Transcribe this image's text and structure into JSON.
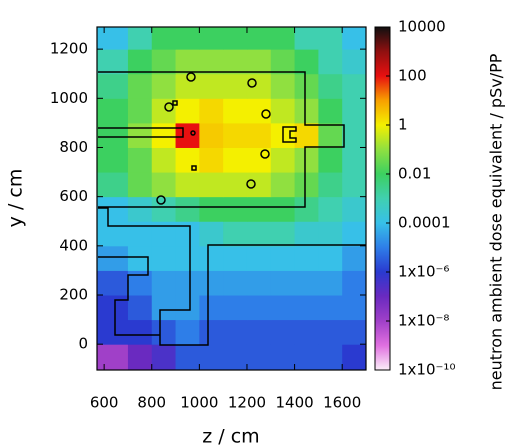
{
  "chart_data": {
    "type": "heatmap",
    "xlabel": "z / cm",
    "ylabel": "y / cm",
    "colorbar_label": "neutron ambient dose equivalent / pSv/PP",
    "xlim": [
      570,
      1700
    ],
    "ylim": [
      -105,
      1290
    ],
    "xticks": [
      600,
      800,
      1000,
      1200,
      1400,
      1600
    ],
    "yticks": [
      0,
      200,
      400,
      600,
      800,
      1000,
      1200
    ],
    "x_bins": [
      570,
      700,
      800,
      900,
      1000,
      1100,
      1200,
      1300,
      1400,
      1500,
      1600,
      1700
    ],
    "y_bins": [
      -105,
      0,
      100,
      200,
      300,
      400,
      500,
      600,
      700,
      800,
      900,
      1000,
      1100,
      1200,
      1290
    ],
    "log_color": true,
    "clim": [
      1e-10,
      10000
    ],
    "cticks": [
      10000,
      100,
      1,
      0.01,
      0.0001,
      {
        "value": 1e-06,
        "label": "1x10⁻⁶"
      },
      {
        "value": 1e-08,
        "label": "1x10⁻⁸"
      },
      {
        "value": 1e-10,
        "label": "1x10⁻¹⁰"
      }
    ],
    "colormap": [
      "#fbeef8",
      "#e070e0",
      "#a040c8",
      "#6a2ac0",
      "#2a3ad0",
      "#2e7ee8",
      "#37c0e8",
      "#40d0b0",
      "#3cd060",
      "#90e040",
      "#f4f000",
      "#f8a000",
      "#e81010",
      "#901010",
      "#101010"
    ],
    "z": [
      [
        1e-08,
        1e-07,
        3e-07,
        3e-06,
        3e-06,
        3e-06,
        3e-06,
        3e-06,
        3e-06,
        3e-06,
        1e-06
      ],
      [
        1e-06,
        1e-06,
        3e-06,
        1e-05,
        3e-06,
        3e-06,
        3e-06,
        3e-06,
        3e-06,
        3e-06,
        3e-06
      ],
      [
        1e-06,
        3e-06,
        3e-05,
        3e-05,
        1e-05,
        1e-05,
        1e-05,
        1e-05,
        1e-05,
        1e-05,
        1e-05
      ],
      [
        3e-06,
        1e-05,
        3e-05,
        3e-05,
        3e-05,
        3e-05,
        3e-05,
        3e-05,
        3e-05,
        3e-05,
        1e-05
      ],
      [
        3e-05,
        0.0001,
        0.0001,
        0.0001,
        0.0001,
        0.0001,
        0.0001,
        0.0001,
        0.0001,
        0.0001,
        3e-05
      ],
      [
        0.0001,
        0.0001,
        0.0001,
        0.0001,
        0.0003,
        0.001,
        0.001,
        0.001,
        0.0003,
        0.0003,
        0.0001
      ],
      [
        0.0001,
        0.0003,
        0.001,
        0.003,
        0.01,
        0.01,
        0.01,
        0.01,
        0.003,
        0.001,
        0.0003
      ],
      [
        0.003,
        0.03,
        0.1,
        0.3,
        0.3,
        0.3,
        0.3,
        0.1,
        0.03,
        0.003,
        0.001
      ],
      [
        0.01,
        0.03,
        0.3,
        1,
        2,
        1,
        1,
        0.3,
        0.1,
        0.01,
        0.001
      ],
      [
        0.01,
        0.1,
        1,
        100,
        3,
        2,
        2,
        1,
        2,
        0.03,
        0.001
      ],
      [
        0.01,
        0.03,
        0.3,
        1,
        2,
        1,
        1,
        0.3,
        0.1,
        0.01,
        0.001
      ],
      [
        0.003,
        0.03,
        0.1,
        0.3,
        0.3,
        0.3,
        0.3,
        0.1,
        0.03,
        0.003,
        0.001
      ],
      [
        0.001,
        0.01,
        0.03,
        0.1,
        0.1,
        0.1,
        0.1,
        0.03,
        0.01,
        0.001,
        0.0003
      ],
      [
        0.0001,
        0.001,
        0.01,
        0.01,
        0.01,
        0.01,
        0.01,
        0.01,
        0.001,
        0.001,
        0.0001
      ]
    ]
  }
}
